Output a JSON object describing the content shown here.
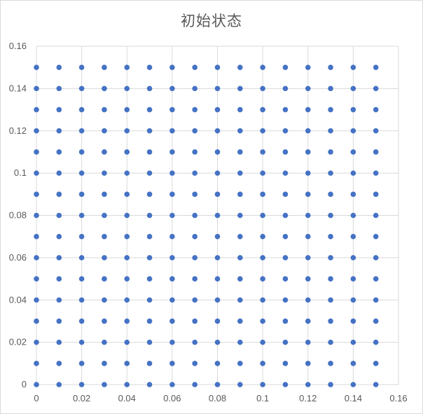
{
  "chart_data": {
    "type": "scatter",
    "title": "初始状态",
    "xlabel": "",
    "ylabel": "",
    "xlim": [
      0,
      0.16
    ],
    "ylim": [
      0,
      0.16
    ],
    "x_ticks": [
      "0",
      "0.02",
      "0.04",
      "0.06",
      "0.08",
      "0.1",
      "0.12",
      "0.14",
      "0.16"
    ],
    "y_ticks": [
      "0",
      "0.02",
      "0.04",
      "0.06",
      "0.08",
      "0.1",
      "0.12",
      "0.14",
      "0.16"
    ],
    "grid": true,
    "legend": "none",
    "marker_color": "#4472c4",
    "grid_color": "#d9d9d9",
    "series": [
      {
        "x_values": [
          0,
          0.01,
          0.02,
          0.03,
          0.04,
          0.05,
          0.06,
          0.07,
          0.08,
          0.09,
          0.1,
          0.11,
          0.12,
          0.13,
          0.14,
          0.15
        ],
        "y_values": [
          0,
          0.01,
          0.02,
          0.03,
          0.04,
          0.05,
          0.06,
          0.07,
          0.08,
          0.09,
          0.1,
          0.11,
          0.12,
          0.13,
          0.14,
          0.15
        ],
        "pattern": "full grid of every x_value paired with every y_value"
      }
    ]
  }
}
